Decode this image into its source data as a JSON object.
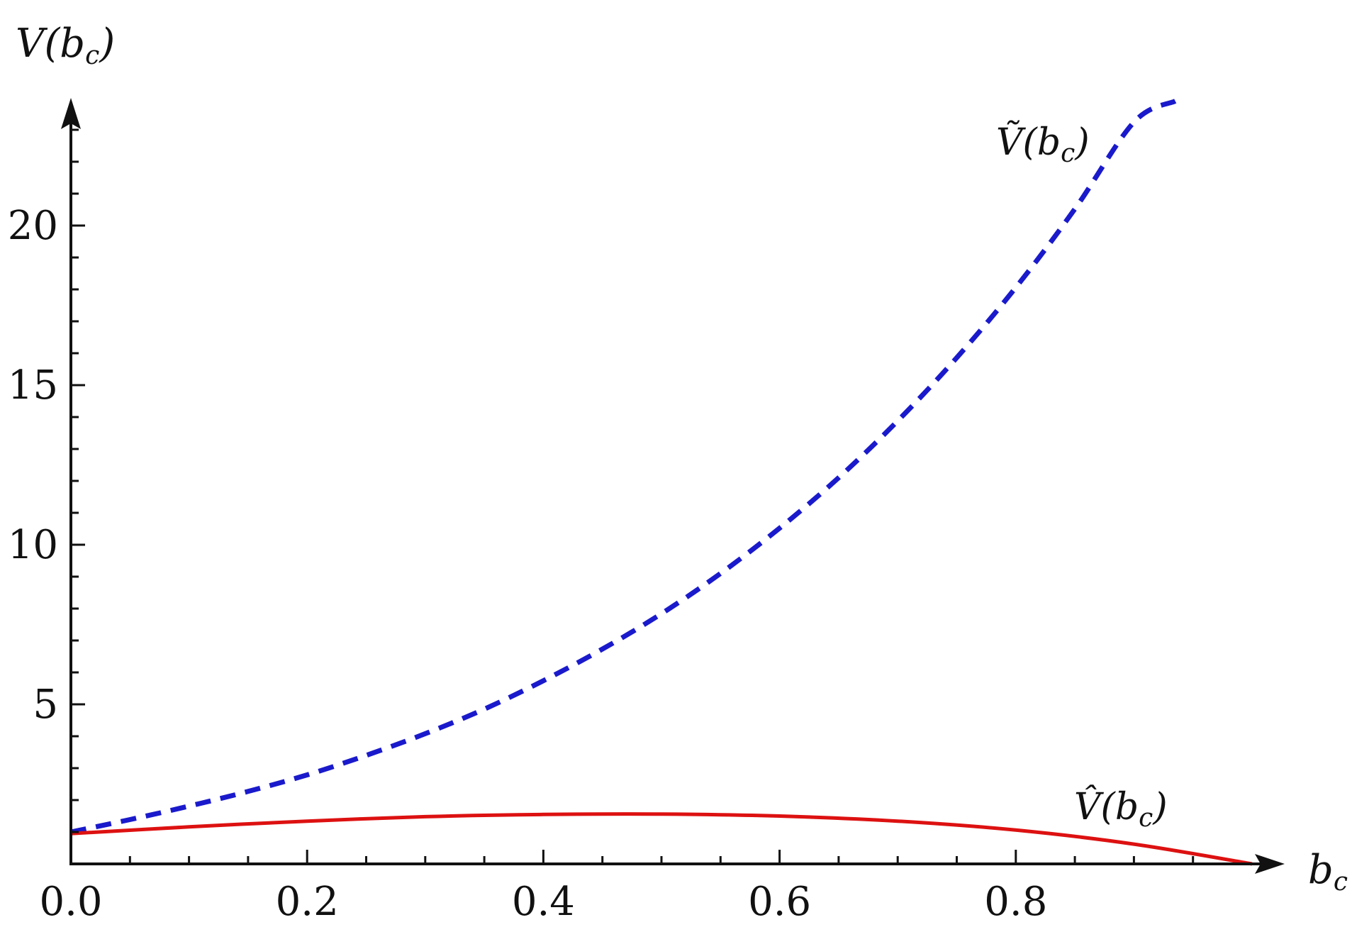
{
  "chart_data": {
    "type": "line",
    "xlabel": "b_c",
    "ylabel": "V(b_c)",
    "xlim": [
      0,
      1.0
    ],
    "ylim": [
      0,
      23.5
    ],
    "x_ticks": [
      0.0,
      0.2,
      0.4,
      0.6,
      0.8
    ],
    "x_tick_labels": [
      "0.0",
      "0.2",
      "0.4",
      "0.6",
      "0.8"
    ],
    "y_ticks": [
      5,
      10,
      15,
      20
    ],
    "y_tick_labels": [
      "5",
      "10",
      "15",
      "20"
    ],
    "grid": false,
    "series": [
      {
        "name": "Ṽ(b_c)",
        "style": "dashed",
        "color": "#1a1acc",
        "x": [
          0.0,
          0.05,
          0.1,
          0.15,
          0.2,
          0.25,
          0.3,
          0.35,
          0.4,
          0.45,
          0.5,
          0.55,
          0.6,
          0.65,
          0.7,
          0.75,
          0.8,
          0.85,
          0.9,
          0.935
        ],
        "y": [
          1.0,
          1.39,
          1.81,
          2.27,
          2.79,
          3.4,
          4.08,
          4.85,
          5.74,
          6.73,
          7.84,
          9.1,
          10.52,
          12.1,
          13.88,
          15.86,
          18.06,
          20.52,
          23.24,
          23.9
        ]
      },
      {
        "name": "V̂(b_c)",
        "style": "solid",
        "color": "#dd1111",
        "x": [
          0.0,
          0.1,
          0.2,
          0.3,
          0.4,
          0.5,
          0.6,
          0.7,
          0.8,
          0.9,
          1.0
        ],
        "y": [
          0.95,
          1.16,
          1.34,
          1.48,
          1.55,
          1.56,
          1.5,
          1.34,
          1.06,
          0.62,
          0.0
        ]
      }
    ]
  }
}
